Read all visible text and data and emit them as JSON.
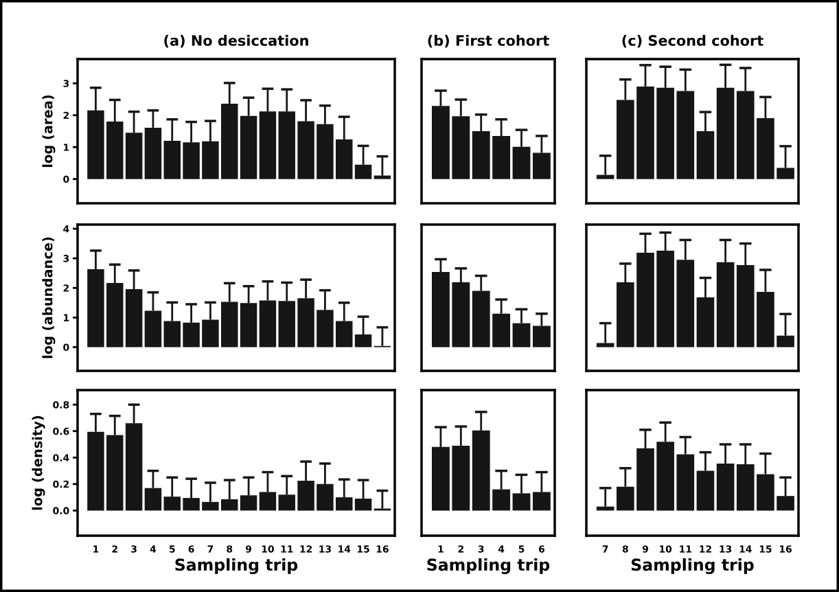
{
  "chart_data": [
    {
      "type": "bar",
      "title": "(a) No desiccation",
      "ylabel": "log (area)",
      "categories": [
        "1",
        "2",
        "3",
        "4",
        "5",
        "6",
        "7",
        "8",
        "9",
        "10",
        "11",
        "12",
        "13",
        "14",
        "15",
        "16"
      ],
      "values": [
        2.15,
        1.8,
        1.45,
        1.61,
        1.2,
        1.15,
        1.18,
        2.36,
        1.98,
        2.12,
        2.12,
        1.81,
        1.72,
        1.24,
        0.45,
        0.11
      ],
      "errors": [
        [
          2.15,
          2.86
        ],
        [
          1.8,
          2.48
        ],
        [
          1.45,
          2.11
        ],
        [
          1.61,
          2.15
        ],
        [
          1.2,
          1.87
        ],
        [
          1.15,
          1.79
        ],
        [
          1.18,
          1.82
        ],
        [
          2.36,
          3.01
        ],
        [
          1.98,
          2.55
        ],
        [
          2.12,
          2.83
        ],
        [
          2.12,
          2.81
        ],
        [
          1.81,
          2.47
        ],
        [
          1.72,
          2.3
        ],
        [
          1.24,
          1.95
        ],
        [
          0.45,
          1.04
        ],
        [
          0.11,
          0.71
        ]
      ],
      "color": "#161616",
      "ylim": [
        -0.76,
        3.76
      ],
      "yticks": [
        0,
        1,
        2,
        3
      ],
      "tick_labels": "y"
    },
    {
      "type": "bar",
      "title": "(b) First cohort",
      "categories": [
        "1",
        "2",
        "3",
        "4",
        "5",
        "6"
      ],
      "values": [
        2.29,
        1.97,
        1.5,
        1.35,
        1.01,
        0.82
      ],
      "errors": [
        [
          2.29,
          2.77
        ],
        [
          1.97,
          2.49
        ],
        [
          1.5,
          2.02
        ],
        [
          1.35,
          1.87
        ],
        [
          1.01,
          1.54
        ],
        [
          0.82,
          1.35
        ]
      ],
      "color": "#161616",
      "ylim": [
        -0.76,
        3.76
      ],
      "tick_labels": false
    },
    {
      "type": "bar",
      "title": "(c) Second cohort",
      "categories": [
        "7",
        "8",
        "9",
        "10",
        "11",
        "12",
        "13",
        "14",
        "15",
        "16"
      ],
      "values": [
        0.13,
        2.48,
        2.9,
        2.86,
        2.76,
        1.5,
        2.86,
        2.76,
        1.91,
        0.35
      ],
      "errors": [
        [
          0.13,
          0.73
        ],
        [
          2.48,
          3.12
        ],
        [
          2.9,
          3.57
        ],
        [
          2.86,
          3.52
        ],
        [
          2.76,
          3.43
        ],
        [
          1.5,
          2.1
        ],
        [
          2.86,
          3.58
        ],
        [
          2.76,
          3.48
        ],
        [
          1.91,
          2.57
        ],
        [
          0.35,
          1.03
        ]
      ],
      "color": "#161616",
      "ylim": [
        -0.76,
        3.76
      ],
      "tick_labels": false
    },
    {
      "type": "bar",
      "ylabel": "log (abundance)",
      "categories": [
        "1",
        "2",
        "3",
        "4",
        "5",
        "6",
        "7",
        "8",
        "9",
        "10",
        "11",
        "12",
        "13",
        "14",
        "15",
        "16"
      ],
      "values": [
        2.63,
        2.17,
        1.96,
        1.23,
        0.88,
        0.83,
        0.93,
        1.53,
        1.49,
        1.58,
        1.56,
        1.65,
        1.26,
        0.88,
        0.43,
        0.04
      ],
      "errors": [
        [
          2.63,
          3.26
        ],
        [
          2.17,
          2.79
        ],
        [
          1.96,
          2.59
        ],
        [
          1.23,
          1.85
        ],
        [
          0.88,
          1.51
        ],
        [
          0.83,
          1.45
        ],
        [
          0.93,
          1.51
        ],
        [
          1.53,
          2.16
        ],
        [
          1.49,
          2.06
        ],
        [
          1.58,
          2.22
        ],
        [
          1.56,
          2.18
        ],
        [
          1.65,
          2.28
        ],
        [
          1.26,
          1.92
        ],
        [
          0.88,
          1.5
        ],
        [
          0.43,
          1.03
        ],
        [
          0.04,
          0.67
        ]
      ],
      "color": "#161616",
      "ylim": [
        -0.8,
        4.14
      ],
      "yticks": [
        0,
        1,
        2,
        3,
        4
      ],
      "tick_labels": "y"
    },
    {
      "type": "bar",
      "categories": [
        "1",
        "2",
        "3",
        "4",
        "5",
        "6"
      ],
      "values": [
        2.54,
        2.19,
        1.9,
        1.13,
        0.81,
        0.72
      ],
      "errors": [
        [
          2.54,
          2.97
        ],
        [
          2.19,
          2.66
        ],
        [
          1.9,
          2.41
        ],
        [
          1.13,
          1.61
        ],
        [
          0.81,
          1.28
        ],
        [
          0.72,
          1.13
        ]
      ],
      "color": "#161616",
      "ylim": [
        -0.8,
        4.14
      ],
      "tick_labels": false
    },
    {
      "type": "bar",
      "categories": [
        "7",
        "8",
        "9",
        "10",
        "11",
        "12",
        "13",
        "14",
        "15",
        "16"
      ],
      "values": [
        0.14,
        2.19,
        3.19,
        3.26,
        2.95,
        1.68,
        2.87,
        2.77,
        1.87,
        0.39
      ],
      "errors": [
        [
          0.14,
          0.81
        ],
        [
          2.19,
          2.82
        ],
        [
          3.19,
          3.83
        ],
        [
          3.26,
          3.87
        ],
        [
          2.95,
          3.62
        ],
        [
          1.68,
          2.34
        ],
        [
          2.87,
          3.62
        ],
        [
          2.77,
          3.5
        ],
        [
          1.87,
          2.61
        ],
        [
          0.39,
          1.12
        ]
      ],
      "color": "#161616",
      "ylim": [
        -0.8,
        4.14
      ],
      "tick_labels": false
    },
    {
      "type": "bar",
      "ylabel": "log (density)",
      "xlabel": "Sampling trip",
      "categories": [
        "1",
        "2",
        "3",
        "4",
        "5",
        "6",
        "7",
        "8",
        "9",
        "10",
        "11",
        "12",
        "13",
        "14",
        "15",
        "16"
      ],
      "values": [
        0.595,
        0.57,
        0.66,
        0.17,
        0.105,
        0.095,
        0.065,
        0.085,
        0.115,
        0.14,
        0.12,
        0.225,
        0.2,
        0.1,
        0.09,
        0.015
      ],
      "errors": [
        [
          0.595,
          0.73
        ],
        [
          0.57,
          0.715
        ],
        [
          0.66,
          0.8
        ],
        [
          0.17,
          0.3
        ],
        [
          0.105,
          0.25
        ],
        [
          0.095,
          0.24
        ],
        [
          0.065,
          0.21
        ],
        [
          0.085,
          0.23
        ],
        [
          0.115,
          0.25
        ],
        [
          0.14,
          0.29
        ],
        [
          0.12,
          0.26
        ],
        [
          0.225,
          0.37
        ],
        [
          0.2,
          0.355
        ],
        [
          0.1,
          0.235
        ],
        [
          0.09,
          0.23
        ],
        [
          0.015,
          0.15
        ]
      ],
      "color": "#161616",
      "ylim": [
        -0.19,
        0.91
      ],
      "yticks": [
        {
          "value": 0,
          "label": "0.0"
        },
        0.2,
        0.4,
        0.6,
        0.8
      ]
    },
    {
      "type": "bar",
      "xlabel": "Sampling trip",
      "categories": [
        "1",
        "2",
        "3",
        "4",
        "5",
        "6"
      ],
      "values": [
        0.48,
        0.49,
        0.605,
        0.16,
        0.13,
        0.14
      ],
      "errors": [
        [
          0.48,
          0.63
        ],
        [
          0.49,
          0.635
        ],
        [
          0.605,
          0.745
        ],
        [
          0.16,
          0.3
        ],
        [
          0.13,
          0.27
        ],
        [
          0.14,
          0.29
        ]
      ],
      "color": "#161616",
      "ylim": [
        -0.19,
        0.91
      ],
      "tick_labels": "x"
    },
    {
      "type": "bar",
      "xlabel": "Sampling trip",
      "categories": [
        "7",
        "8",
        "9",
        "10",
        "11",
        "12",
        "13",
        "14",
        "15",
        "16"
      ],
      "values": [
        0.03,
        0.18,
        0.47,
        0.52,
        0.425,
        0.3,
        0.355,
        0.35,
        0.275,
        0.11
      ],
      "errors": [
        [
          0.03,
          0.17
        ],
        [
          0.18,
          0.32
        ],
        [
          0.47,
          0.61
        ],
        [
          0.52,
          0.665
        ],
        [
          0.425,
          0.555
        ],
        [
          0.3,
          0.44
        ],
        [
          0.355,
          0.5
        ],
        [
          0.35,
          0.5
        ],
        [
          0.275,
          0.43
        ],
        [
          0.11,
          0.25
        ]
      ],
      "color": "#161616",
      "ylim": [
        -0.19,
        0.91
      ],
      "tick_labels": "x"
    }
  ]
}
